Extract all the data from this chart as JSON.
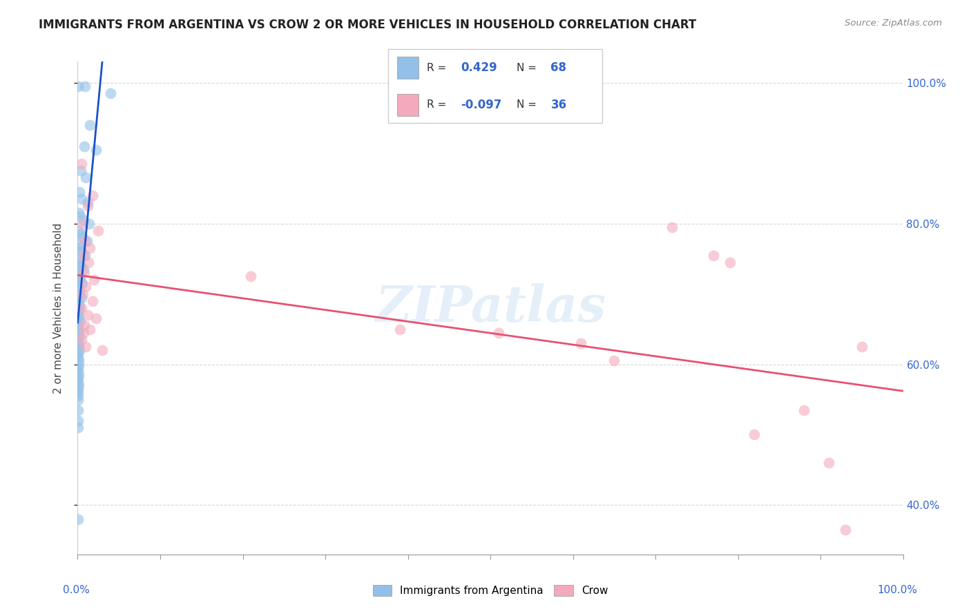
{
  "title": "IMMIGRANTS FROM ARGENTINA VS CROW 2 OR MORE VEHICLES IN HOUSEHOLD CORRELATION CHART",
  "source": "Source: ZipAtlas.com",
  "legend_label1": "Immigrants from Argentina",
  "legend_label2": "Crow",
  "R1": 0.429,
  "N1": 68,
  "R2": -0.097,
  "N2": 36,
  "blue_color": "#92C0E8",
  "pink_color": "#F4AABC",
  "blue_line_color": "#1A4FCC",
  "pink_line_color": "#E85070",
  "blue_scatter": [
    [
      0.05,
      99.5
    ],
    [
      0.9,
      99.5
    ],
    [
      4.0,
      98.5
    ],
    [
      1.5,
      94.0
    ],
    [
      0.8,
      91.0
    ],
    [
      2.2,
      90.5
    ],
    [
      0.4,
      87.5
    ],
    [
      1.0,
      86.5
    ],
    [
      0.2,
      84.5
    ],
    [
      0.5,
      83.5
    ],
    [
      1.2,
      83.0
    ],
    [
      0.1,
      81.5
    ],
    [
      0.3,
      81.0
    ],
    [
      0.7,
      80.5
    ],
    [
      1.4,
      80.0
    ],
    [
      0.15,
      79.0
    ],
    [
      0.35,
      78.5
    ],
    [
      0.6,
      78.0
    ],
    [
      1.1,
      77.5
    ],
    [
      0.1,
      77.0
    ],
    [
      0.25,
      76.5
    ],
    [
      0.5,
      76.0
    ],
    [
      0.9,
      75.5
    ],
    [
      0.08,
      75.0
    ],
    [
      0.18,
      74.5
    ],
    [
      0.4,
      74.0
    ],
    [
      0.7,
      73.5
    ],
    [
      0.07,
      73.0
    ],
    [
      0.15,
      72.5
    ],
    [
      0.3,
      72.0
    ],
    [
      0.55,
      71.5
    ],
    [
      0.06,
      71.0
    ],
    [
      0.12,
      70.5
    ],
    [
      0.25,
      70.0
    ],
    [
      0.45,
      69.5
    ],
    [
      0.05,
      69.0
    ],
    [
      0.1,
      68.5
    ],
    [
      0.2,
      68.0
    ],
    [
      0.05,
      67.5
    ],
    [
      0.08,
      67.0
    ],
    [
      0.15,
      66.5
    ],
    [
      0.3,
      66.0
    ],
    [
      0.04,
      65.5
    ],
    [
      0.07,
      65.0
    ],
    [
      0.12,
      64.5
    ],
    [
      0.22,
      64.0
    ],
    [
      0.04,
      63.5
    ],
    [
      0.06,
      63.0
    ],
    [
      0.1,
      62.5
    ],
    [
      0.18,
      62.0
    ],
    [
      0.03,
      61.5
    ],
    [
      0.05,
      61.0
    ],
    [
      0.09,
      60.5
    ],
    [
      0.15,
      60.0
    ],
    [
      0.03,
      59.5
    ],
    [
      0.06,
      59.0
    ],
    [
      0.12,
      58.5
    ],
    [
      0.03,
      58.0
    ],
    [
      0.05,
      57.5
    ],
    [
      0.09,
      57.0
    ],
    [
      0.04,
      56.5
    ],
    [
      0.08,
      56.0
    ],
    [
      0.03,
      55.5
    ],
    [
      0.06,
      55.0
    ],
    [
      0.04,
      53.5
    ],
    [
      0.03,
      52.0
    ],
    [
      0.05,
      51.0
    ],
    [
      0.03,
      38.0
    ]
  ],
  "pink_scatter": [
    [
      0.5,
      88.5
    ],
    [
      1.8,
      84.0
    ],
    [
      1.2,
      82.5
    ],
    [
      0.6,
      80.0
    ],
    [
      2.5,
      79.0
    ],
    [
      0.9,
      77.5
    ],
    [
      1.5,
      76.5
    ],
    [
      0.7,
      75.5
    ],
    [
      1.3,
      74.5
    ],
    [
      0.8,
      73.0
    ],
    [
      2.0,
      72.0
    ],
    [
      1.0,
      71.0
    ],
    [
      0.6,
      70.0
    ],
    [
      1.8,
      69.0
    ],
    [
      0.5,
      68.0
    ],
    [
      1.2,
      67.0
    ],
    [
      2.2,
      66.5
    ],
    [
      0.8,
      65.5
    ],
    [
      1.5,
      65.0
    ],
    [
      0.7,
      64.5
    ],
    [
      0.5,
      63.5
    ],
    [
      1.0,
      62.5
    ],
    [
      3.0,
      62.0
    ],
    [
      39.0,
      65.0
    ],
    [
      51.0,
      64.5
    ],
    [
      61.0,
      63.0
    ],
    [
      65.0,
      60.5
    ],
    [
      72.0,
      79.5
    ],
    [
      77.0,
      75.5
    ],
    [
      79.0,
      74.5
    ],
    [
      82.0,
      50.0
    ],
    [
      88.0,
      53.5
    ],
    [
      91.0,
      46.0
    ],
    [
      93.0,
      36.5
    ],
    [
      95.0,
      62.5
    ],
    [
      21.0,
      72.5
    ]
  ],
  "watermark": "ZIPatlas",
  "xlim": [
    0,
    100
  ],
  "ylim": [
    33,
    103
  ],
  "yticks": [
    40,
    60,
    80,
    100
  ],
  "ytick_labels": [
    "40.0%",
    "60.0%",
    "80.0%",
    "100.0%"
  ]
}
